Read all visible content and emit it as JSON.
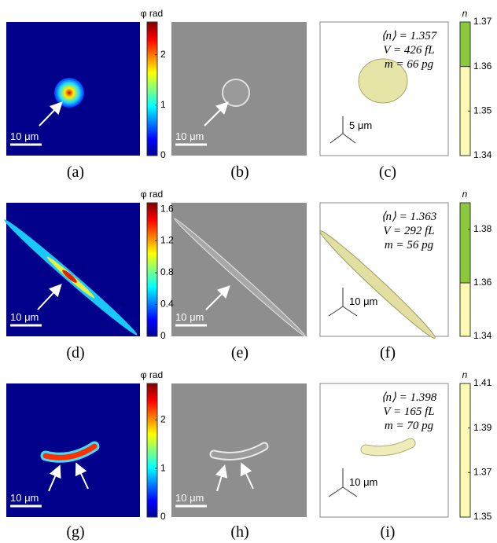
{
  "panels": [
    {
      "label": "(a)",
      "scale_bar": "10 μm",
      "colorbar": {
        "title": "φ rad",
        "range": [
          0,
          2.65
        ],
        "ticks": [
          0,
          1,
          2
        ]
      }
    },
    {
      "label": "(b)",
      "scale_bar": "10 μm"
    },
    {
      "label": "(c)",
      "axes_scale": "5 μm",
      "stats": [
        "⟨n⟩ = 1.357",
        "V = 426 fL",
        "m = 66 pg"
      ],
      "colorbar": {
        "title": "n",
        "range": [
          1.34,
          1.37
        ],
        "ticks": [
          1.34,
          1.35,
          1.36,
          1.37
        ],
        "green_from": 1.36
      }
    },
    {
      "label": "(d)",
      "scale_bar": "10 μm",
      "colorbar": {
        "title": "φ rad",
        "range": [
          0,
          1.68
        ],
        "ticks": [
          0,
          0.4,
          0.8,
          1.2,
          1.6
        ]
      }
    },
    {
      "label": "(e)",
      "scale_bar": "10 μm"
    },
    {
      "label": "(f)",
      "axes_scale": "10 μm",
      "stats": [
        "⟨n⟩ = 1.363",
        "V = 292 fL",
        "m = 56 pg"
      ],
      "colorbar": {
        "title": "n",
        "range": [
          1.34,
          1.39
        ],
        "ticks": [
          1.34,
          1.36,
          1.38
        ],
        "green_from": 1.36
      }
    },
    {
      "label": "(g)",
      "scale_bar": "10 μm",
      "colorbar": {
        "title": "φ rad",
        "range": [
          0,
          2.75
        ],
        "ticks": [
          0,
          1,
          2
        ]
      }
    },
    {
      "label": "(h)",
      "scale_bar": "10 μm"
    },
    {
      "label": "(i)",
      "axes_scale": "10 μm",
      "stats": [
        "⟨n⟩ = 1.398",
        "V = 165 fL",
        "m = 70 pg"
      ],
      "colorbar": {
        "title": "n",
        "range": [
          1.35,
          1.41
        ],
        "ticks": [
          1.35,
          1.37,
          1.39,
          1.41
        ]
      }
    }
  ]
}
